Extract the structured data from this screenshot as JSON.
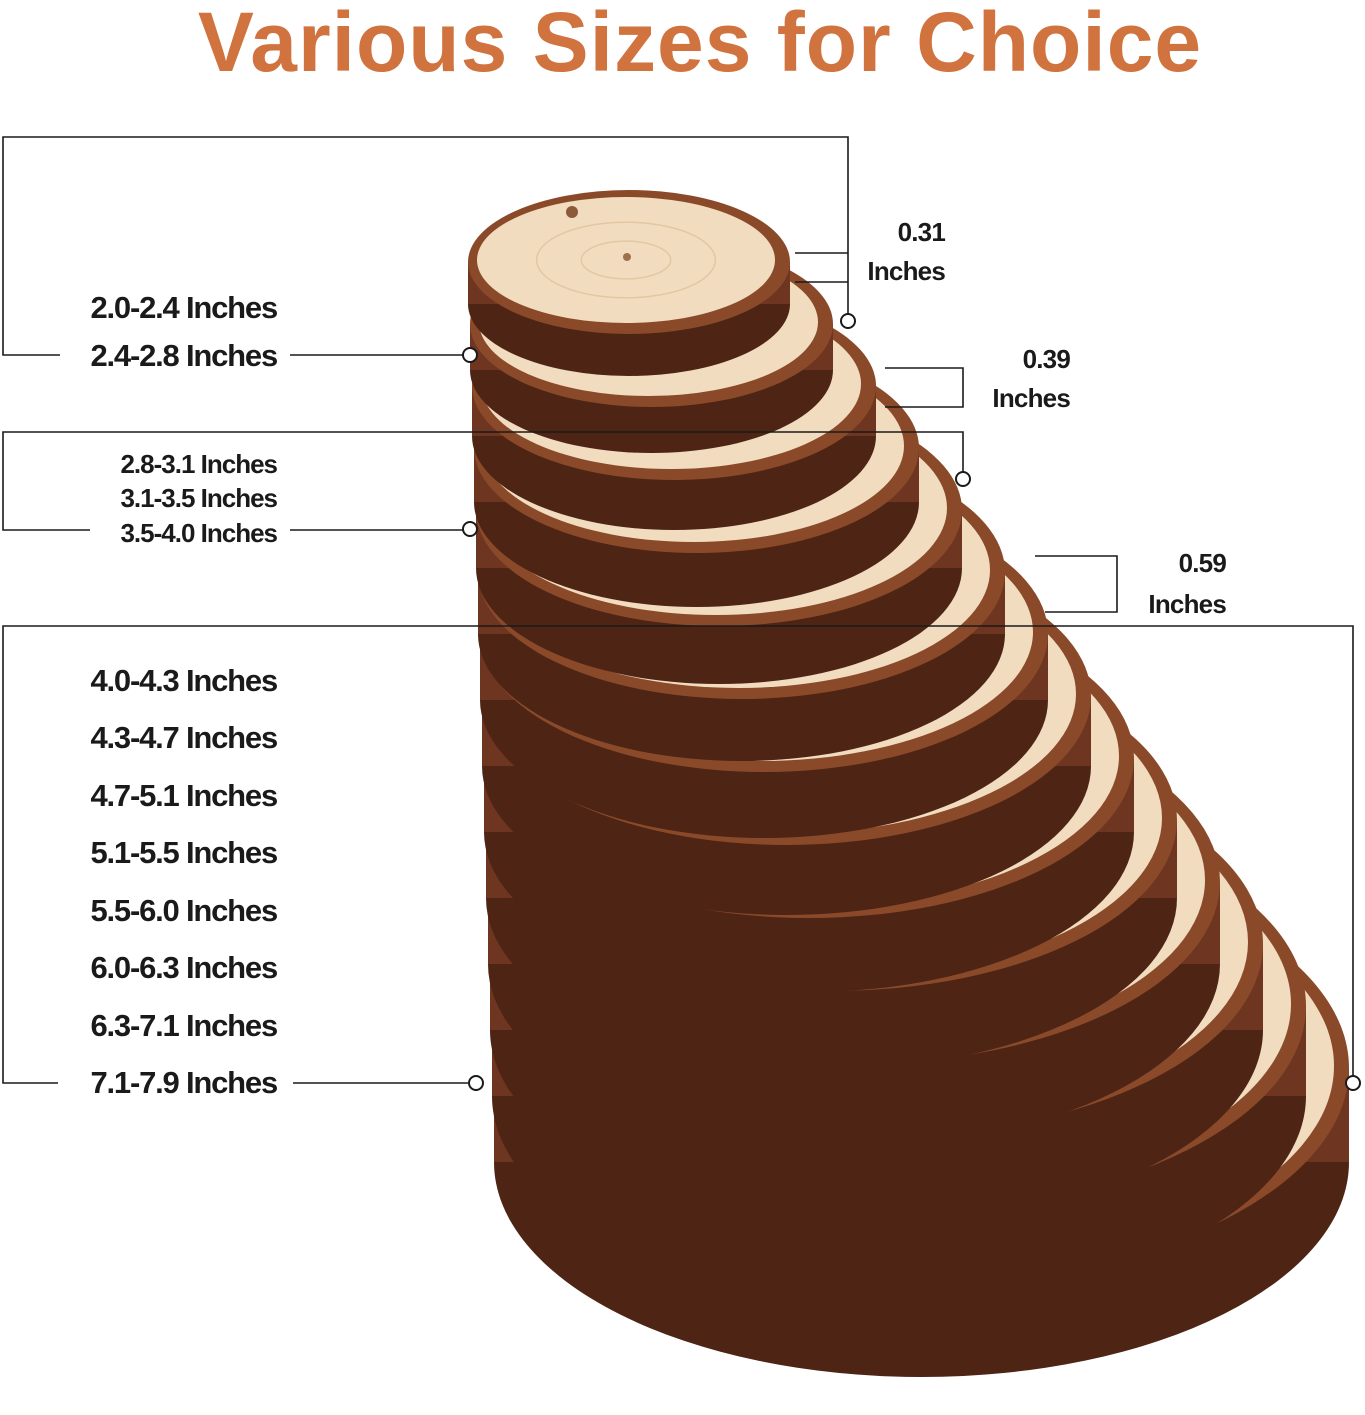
{
  "title": "Various Sizes for Choice",
  "colors": {
    "title": "#d0733f",
    "bark": "#6e3520",
    "wood": "#f1dcc0",
    "lines": "#1a1a1a"
  },
  "groups": [
    {
      "labels": [
        "2.0-2.4 Inches",
        "2.4-2.8 Inches"
      ],
      "thickness": {
        "value": "0.31",
        "unit": "Inches"
      }
    },
    {
      "labels": [
        "2.8-3.1 Inches",
        "3.1-3.5 Inches",
        "3.5-4.0 Inches"
      ],
      "thickness": {
        "value": "0.39",
        "unit": "Inches"
      }
    },
    {
      "labels": [
        "4.0-4.3 Inches",
        "4.3-4.7 Inches",
        "4.7-5.1 Inches",
        "5.1-5.5 Inches",
        "5.5-6.0 Inches",
        "6.0-6.3 Inches",
        "6.3-7.1 Inches",
        "7.1-7.9 Inches"
      ],
      "thickness": {
        "value": "0.59",
        "unit": "Inches"
      }
    }
  ]
}
